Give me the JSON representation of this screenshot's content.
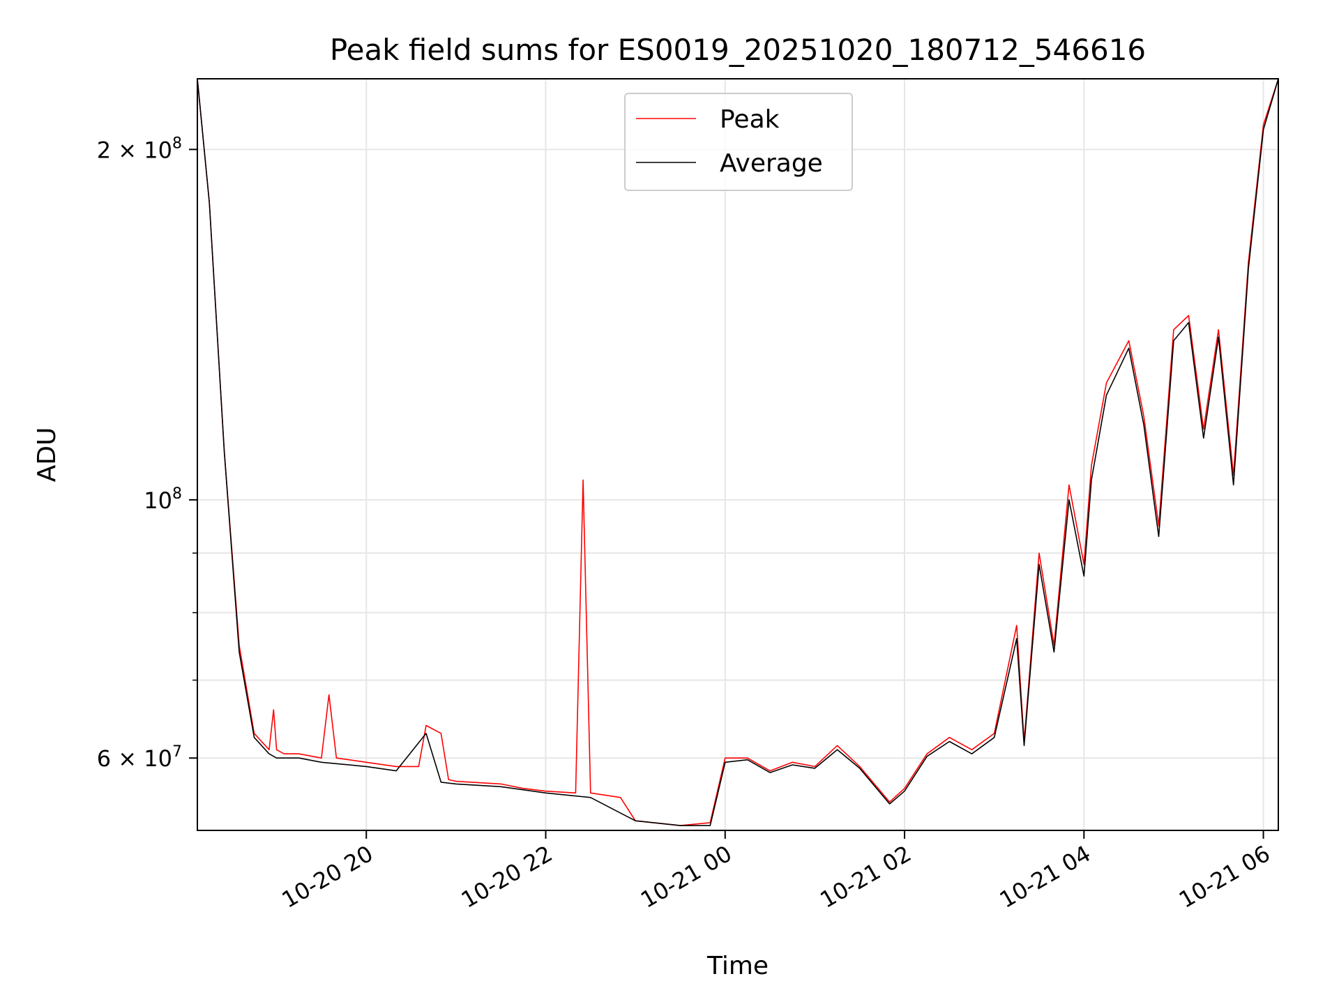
{
  "chart_data": {
    "type": "line",
    "title": "Peak field sums for ES0019_20251020_180712_546616",
    "xlabel": "Time",
    "ylabel": "ADU",
    "y_scale": "log",
    "ylim": [
      52000000,
      230000000
    ],
    "xlim": [
      "2025-10-20 18:07",
      "2025-10-21 06:10"
    ],
    "grid": true,
    "legend_position": "top-center",
    "x_ticks": [
      "2025-10-20 20:00",
      "2025-10-20 22:00",
      "2025-10-21 00:00",
      "2025-10-21 02:00",
      "2025-10-21 04:00",
      "2025-10-21 06:00"
    ],
    "x_tick_labels": [
      "10-20 20",
      "10-20 22",
      "10-21 00",
      "10-21 02",
      "10-21 04",
      "10-21 06"
    ],
    "y_major_ticks": [
      {
        "value": 60000000,
        "mantissa": "6",
        "base": "10",
        "exp": "7"
      },
      {
        "value": 100000000,
        "mantissa": "",
        "base": "10",
        "exp": "8"
      },
      {
        "value": 200000000,
        "mantissa": "2",
        "base": "10",
        "exp": "8"
      }
    ],
    "y_minor_ticks": [
      70000000,
      80000000,
      90000000
    ],
    "series": [
      {
        "name": "Peak",
        "color": "#ff0000",
        "x": [
          "2025-10-20 18:07",
          "2025-10-20 18:15",
          "2025-10-20 18:25",
          "2025-10-20 18:35",
          "2025-10-20 18:45",
          "2025-10-20 18:55",
          "2025-10-20 18:58",
          "2025-10-20 19:00",
          "2025-10-20 19:05",
          "2025-10-20 19:15",
          "2025-10-20 19:30",
          "2025-10-20 19:35",
          "2025-10-20 19:40",
          "2025-10-20 20:00",
          "2025-10-20 20:20",
          "2025-10-20 20:35",
          "2025-10-20 20:40",
          "2025-10-20 20:50",
          "2025-10-20 20:55",
          "2025-10-20 21:00",
          "2025-10-20 21:30",
          "2025-10-20 21:45",
          "2025-10-20 22:00",
          "2025-10-20 22:20",
          "2025-10-20 22:25",
          "2025-10-20 22:30",
          "2025-10-20 22:50",
          "2025-10-20 23:00",
          "2025-10-20 23:30",
          "2025-10-20 23:50",
          "2025-10-21 00:00",
          "2025-10-21 00:15",
          "2025-10-21 00:30",
          "2025-10-21 00:45",
          "2025-10-21 01:00",
          "2025-10-21 01:15",
          "2025-10-21 01:30",
          "2025-10-21 01:50",
          "2025-10-21 02:00",
          "2025-10-21 02:15",
          "2025-10-21 02:30",
          "2025-10-21 02:45",
          "2025-10-21 03:00",
          "2025-10-21 03:15",
          "2025-10-21 03:20",
          "2025-10-21 03:30",
          "2025-10-21 03:40",
          "2025-10-21 03:50",
          "2025-10-21 04:00",
          "2025-10-21 04:05",
          "2025-10-21 04:15",
          "2025-10-21 04:30",
          "2025-10-21 04:40",
          "2025-10-21 04:50",
          "2025-10-21 05:00",
          "2025-10-21 05:10",
          "2025-10-21 05:20",
          "2025-10-21 05:30",
          "2025-10-21 05:40",
          "2025-10-21 05:50",
          "2025-10-21 06:00",
          "2025-10-21 06:10"
        ],
        "values": [
          230000000,
          180000000,
          110000000,
          75000000,
          63000000,
          61000000,
          66000000,
          61000000,
          60500000,
          60500000,
          60000000,
          68000000,
          60000000,
          59500000,
          59000000,
          59000000,
          64000000,
          63000000,
          57500000,
          57300000,
          57000000,
          56500000,
          56200000,
          56000000,
          104000000,
          56000000,
          55500000,
          53000000,
          52500000,
          52800000,
          60000000,
          60000000,
          58500000,
          59500000,
          59000000,
          61500000,
          59000000,
          55000000,
          56500000,
          60500000,
          62500000,
          61000000,
          63000000,
          78000000,
          62000000,
          90000000,
          75000000,
          103000000,
          88000000,
          107000000,
          126000000,
          137000000,
          118000000,
          95000000,
          140000000,
          144000000,
          115000000,
          140000000,
          105000000,
          160000000,
          210000000,
          230000000
        ]
      },
      {
        "name": "Average",
        "color": "#000000",
        "x": [
          "2025-10-20 18:07",
          "2025-10-20 18:15",
          "2025-10-20 18:25",
          "2025-10-20 18:35",
          "2025-10-20 18:45",
          "2025-10-20 18:55",
          "2025-10-20 19:00",
          "2025-10-20 19:15",
          "2025-10-20 19:30",
          "2025-10-20 20:00",
          "2025-10-20 20:20",
          "2025-10-20 20:40",
          "2025-10-20 20:50",
          "2025-10-20 21:00",
          "2025-10-20 21:30",
          "2025-10-20 22:00",
          "2025-10-20 22:30",
          "2025-10-20 23:00",
          "2025-10-20 23:30",
          "2025-10-20 23:50",
          "2025-10-21 00:00",
          "2025-10-21 00:15",
          "2025-10-21 00:30",
          "2025-10-21 00:45",
          "2025-10-21 01:00",
          "2025-10-21 01:15",
          "2025-10-21 01:30",
          "2025-10-21 01:50",
          "2025-10-21 02:00",
          "2025-10-21 02:15",
          "2025-10-21 02:30",
          "2025-10-21 02:45",
          "2025-10-21 03:00",
          "2025-10-21 03:15",
          "2025-10-21 03:20",
          "2025-10-21 03:30",
          "2025-10-21 03:40",
          "2025-10-21 03:50",
          "2025-10-21 04:00",
          "2025-10-21 04:05",
          "2025-10-21 04:15",
          "2025-10-21 04:30",
          "2025-10-21 04:40",
          "2025-10-21 04:50",
          "2025-10-21 05:00",
          "2025-10-21 05:10",
          "2025-10-21 05:20",
          "2025-10-21 05:30",
          "2025-10-21 05:40",
          "2025-10-21 05:50",
          "2025-10-21 06:00",
          "2025-10-21 06:10"
        ],
        "values": [
          230000000,
          180000000,
          110000000,
          74000000,
          62500000,
          60500000,
          60000000,
          60000000,
          59500000,
          59000000,
          58500000,
          63000000,
          57200000,
          57000000,
          56700000,
          56000000,
          55500000,
          53000000,
          52500000,
          52500000,
          59500000,
          59800000,
          58300000,
          59200000,
          58800000,
          61000000,
          58800000,
          54800000,
          56200000,
          60200000,
          62000000,
          60500000,
          62500000,
          76000000,
          61500000,
          88000000,
          74000000,
          100000000,
          86000000,
          104000000,
          123000000,
          135000000,
          116000000,
          93000000,
          137000000,
          142000000,
          113000000,
          138000000,
          103000000,
          158000000,
          208000000,
          230000000
        ]
      }
    ]
  }
}
